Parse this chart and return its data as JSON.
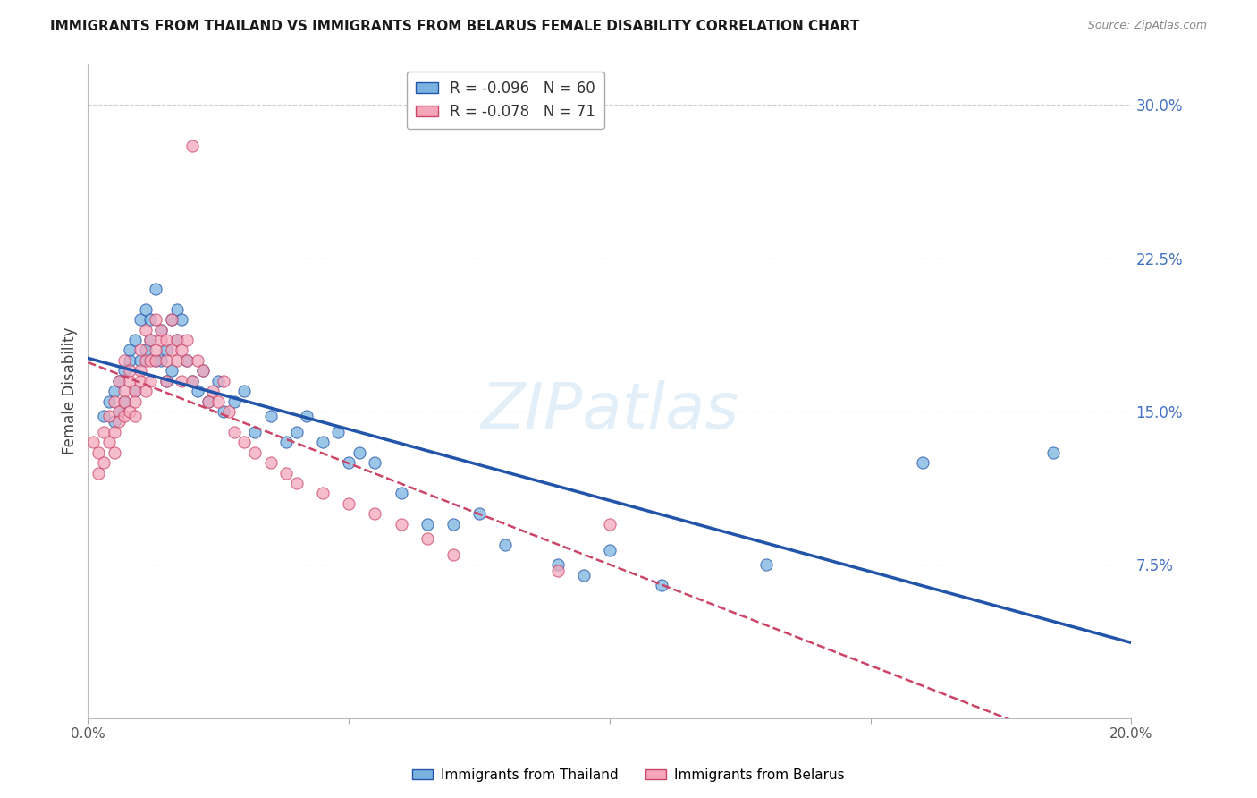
{
  "title": "IMMIGRANTS FROM THAILAND VS IMMIGRANTS FROM BELARUS FEMALE DISABILITY CORRELATION CHART",
  "source": "Source: ZipAtlas.com",
  "ylabel": "Female Disability",
  "right_ytick_labels": [
    "7.5%",
    "15.0%",
    "22.5%",
    "30.0%"
  ],
  "right_ytick_values": [
    0.075,
    0.15,
    0.225,
    0.3
  ],
  "xlim": [
    0.0,
    0.2
  ],
  "ylim": [
    0.0,
    0.32
  ],
  "R_thailand": -0.096,
  "N_thailand": 60,
  "R_belarus": -0.078,
  "N_belarus": 71,
  "color_thailand": "#7ab3e0",
  "color_belarus": "#f4a7bb",
  "color_trendline_thailand": "#2255aa",
  "color_trendline_belarus": "#cc4466",
  "title_color": "#1a1a1a",
  "right_axis_color": "#4472c4",
  "watermark": "ZIPatlas",
  "thailand_x": [
    0.003,
    0.004,
    0.005,
    0.005,
    0.006,
    0.006,
    0.007,
    0.007,
    0.008,
    0.008,
    0.009,
    0.009,
    0.01,
    0.01,
    0.011,
    0.011,
    0.012,
    0.012,
    0.013,
    0.013,
    0.014,
    0.014,
    0.015,
    0.015,
    0.016,
    0.016,
    0.017,
    0.017,
    0.018,
    0.019,
    0.02,
    0.021,
    0.022,
    0.023,
    0.025,
    0.026,
    0.028,
    0.03,
    0.032,
    0.035,
    0.038,
    0.04,
    0.042,
    0.045,
    0.048,
    0.05,
    0.052,
    0.055,
    0.06,
    0.065,
    0.07,
    0.075,
    0.08,
    0.09,
    0.095,
    0.1,
    0.11,
    0.13,
    0.16,
    0.185
  ],
  "thailand_y": [
    0.148,
    0.155,
    0.145,
    0.16,
    0.15,
    0.165,
    0.155,
    0.17,
    0.175,
    0.18,
    0.16,
    0.185,
    0.175,
    0.195,
    0.18,
    0.2,
    0.185,
    0.195,
    0.175,
    0.21,
    0.175,
    0.19,
    0.165,
    0.18,
    0.17,
    0.195,
    0.185,
    0.2,
    0.195,
    0.175,
    0.165,
    0.16,
    0.17,
    0.155,
    0.165,
    0.15,
    0.155,
    0.16,
    0.14,
    0.148,
    0.135,
    0.14,
    0.148,
    0.135,
    0.14,
    0.125,
    0.13,
    0.125,
    0.11,
    0.095,
    0.095,
    0.1,
    0.085,
    0.075,
    0.07,
    0.082,
    0.065,
    0.075,
    0.125,
    0.13
  ],
  "belarus_x": [
    0.001,
    0.002,
    0.002,
    0.003,
    0.003,
    0.004,
    0.004,
    0.005,
    0.005,
    0.005,
    0.006,
    0.006,
    0.006,
    0.007,
    0.007,
    0.007,
    0.007,
    0.008,
    0.008,
    0.008,
    0.009,
    0.009,
    0.009,
    0.01,
    0.01,
    0.01,
    0.011,
    0.011,
    0.011,
    0.012,
    0.012,
    0.012,
    0.013,
    0.013,
    0.013,
    0.014,
    0.014,
    0.015,
    0.015,
    0.015,
    0.016,
    0.016,
    0.017,
    0.017,
    0.018,
    0.018,
    0.019,
    0.019,
    0.02,
    0.021,
    0.022,
    0.023,
    0.024,
    0.025,
    0.026,
    0.027,
    0.028,
    0.03,
    0.032,
    0.035,
    0.038,
    0.04,
    0.045,
    0.05,
    0.055,
    0.06,
    0.065,
    0.07,
    0.09,
    0.1,
    0.02
  ],
  "belarus_y": [
    0.135,
    0.12,
    0.13,
    0.125,
    0.14,
    0.135,
    0.148,
    0.14,
    0.155,
    0.13,
    0.15,
    0.165,
    0.145,
    0.16,
    0.175,
    0.155,
    0.148,
    0.165,
    0.17,
    0.15,
    0.16,
    0.155,
    0.148,
    0.17,
    0.18,
    0.165,
    0.175,
    0.19,
    0.16,
    0.175,
    0.185,
    0.165,
    0.175,
    0.195,
    0.18,
    0.185,
    0.19,
    0.175,
    0.185,
    0.165,
    0.195,
    0.18,
    0.185,
    0.175,
    0.18,
    0.165,
    0.175,
    0.185,
    0.165,
    0.175,
    0.17,
    0.155,
    0.16,
    0.155,
    0.165,
    0.15,
    0.14,
    0.135,
    0.13,
    0.125,
    0.12,
    0.115,
    0.11,
    0.105,
    0.1,
    0.095,
    0.088,
    0.08,
    0.072,
    0.095,
    0.28
  ]
}
